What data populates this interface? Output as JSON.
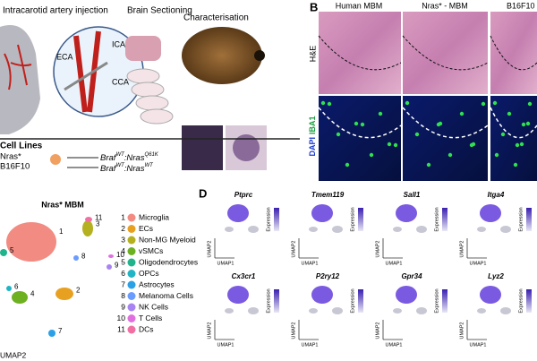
{
  "panel_a": {
    "steps": [
      "Intracarotid artery injection",
      "Brain Sectioning",
      "Characterisation"
    ],
    "vessels": [
      "ECA",
      "ICA",
      "CCA"
    ],
    "cell_lines_title": "Cell Lines",
    "cell_lines": [
      {
        "name": "Nras*",
        "gene1": "Braf",
        "allele1": "WT",
        "gene2": ":Nras",
        "allele2": "Q61K"
      },
      {
        "name": "B16F10",
        "gene1": "Braf",
        "allele1": "WT",
        "gene2": ":Nras",
        "allele2": "WT"
      }
    ]
  },
  "panel_b": {
    "label": "B",
    "columns": [
      "Human MBM",
      "Nras* - MBM",
      "B16F10 -"
    ],
    "row_he": "H&E",
    "row_if": {
      "dapi": "DAPI",
      "iba1": "IBA1"
    }
  },
  "panel_c": {
    "title": "Nras* MBM",
    "axis_y": "UMAP2",
    "clusters": [
      {
        "id": "1",
        "name": "Microglia",
        "color": "#f28b82"
      },
      {
        "id": "2",
        "name": "ECs",
        "color": "#e8a020"
      },
      {
        "id": "3",
        "name": "Non-MG Myeloid",
        "color": "#b5b020"
      },
      {
        "id": "4",
        "name": "vSMCs",
        "color": "#6db020"
      },
      {
        "id": "5",
        "name": "Oligodendrocytes",
        "color": "#20b48c"
      },
      {
        "id": "6",
        "name": "OPCs",
        "color": "#20b4c4"
      },
      {
        "id": "7",
        "name": "Astrocytes",
        "color": "#2aa0e6"
      },
      {
        "id": "8",
        "name": "Melanoma Cells",
        "color": "#6a9cff"
      },
      {
        "id": "9",
        "name": "NK Cells",
        "color": "#a884f2"
      },
      {
        "id": "10",
        "name": "T Cells",
        "color": "#e070e0"
      },
      {
        "id": "11",
        "name": "DCs",
        "color": "#f070a4"
      }
    ]
  },
  "panel_d": {
    "label": "D",
    "genes": [
      "Ptprc",
      "Tmem119",
      "Sall1",
      "Itga4",
      "Cx3cr1",
      "P2ry12",
      "Gpr34",
      "Lyz2"
    ],
    "legend_title": "Expression",
    "axis_x": "UMAP1",
    "axis_y": "UMAP2"
  }
}
